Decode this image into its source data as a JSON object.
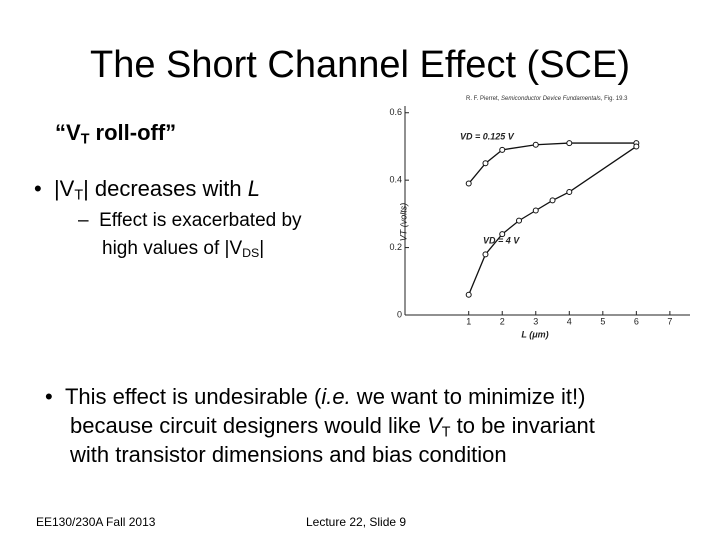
{
  "slide": {
    "title": "The Short Channel Effect (SCE)",
    "citation": [
      "R. F. Pierret, ",
      "Semiconductor Device Fundamentals",
      ", Fig. 19.3"
    ],
    "subtitle": [
      "“V",
      "T",
      " roll-off”"
    ],
    "bullet1": [
      "|V",
      "T",
      "| decreases with ",
      "L"
    ],
    "subbullet": [
      [
        "Effect is exacerbated by"
      ],
      [
        "high values of |V",
        "DS",
        "|"
      ]
    ],
    "bullet2": [
      [
        "This effect is undesirable (",
        "i.e.",
        " we want to minimize it!)"
      ],
      [
        "because circuit designers would like ",
        "V",
        "T",
        " to be invariant"
      ],
      [
        "with transistor dimensions and bias condition"
      ]
    ],
    "footer_left": "EE130/230A Fall 2013",
    "footer_center": "Lecture 22, Slide 9"
  },
  "chart_data": {
    "type": "line",
    "x_label": "L (μm)",
    "y_label": "VT (volts)",
    "xlim": [
      -0.9,
      7.6
    ],
    "ylim": [
      0,
      0.62
    ],
    "xticks": [
      1,
      2,
      3,
      4,
      5,
      6,
      7
    ],
    "yticks": [
      0,
      0.2,
      0.4,
      0.6
    ],
    "series": [
      {
        "name": "VD = 0.125 V",
        "color": "#111111",
        "x": [
          1,
          1.5,
          2,
          3,
          4,
          6
        ],
        "values": [
          0.39,
          0.45,
          0.49,
          0.505,
          0.51,
          0.51
        ]
      },
      {
        "name": "VD = 4 V",
        "color": "#111111",
        "x": [
          1,
          1.5,
          2,
          2.5,
          3,
          3.5,
          4,
          6
        ],
        "values": [
          0.06,
          0.18,
          0.24,
          0.28,
          0.31,
          0.34,
          0.365,
          0.5
        ]
      }
    ]
  }
}
